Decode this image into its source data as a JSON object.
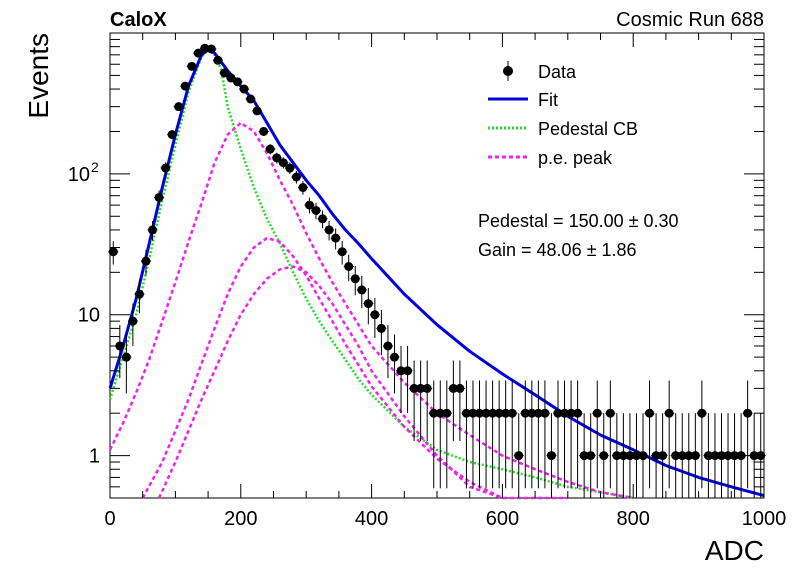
{
  "header": {
    "experiment": "CaloX",
    "run": "Cosmic Run 688"
  },
  "legend": {
    "data": "Data",
    "fit": "Fit",
    "pedestal": "Pedestal CB",
    "pe_peak": "p.e. peak"
  },
  "fit_results": {
    "pedestal": "Pedestal = 150.00 ± 0.30",
    "gain": "Gain = 48.06 ± 1.86"
  },
  "colors": {
    "data": "#000000",
    "fit": "#0000dd",
    "pedestal": "#22dd22",
    "pe_peak": "#ee22ee"
  },
  "chart_data": {
    "type": "scatter",
    "xlabel": "ADC",
    "ylabel": "Events",
    "xlim": [
      0,
      1000
    ],
    "ylim": [
      0.5,
      1000
    ],
    "yscale": "log",
    "x_ticks": [
      0,
      200,
      400,
      600,
      800,
      1000
    ],
    "y_ticks": [
      {
        "value": 1,
        "label": "1"
      },
      {
        "value": 10,
        "label": "10"
      },
      {
        "value": 100,
        "label": "10",
        "sup": "2"
      }
    ],
    "grid": false,
    "legend_position": "top-right",
    "series": [
      {
        "name": "Data",
        "kind": "points",
        "x": [
          5,
          15,
          25,
          35,
          45,
          55,
          65,
          75,
          85,
          95,
          105,
          115,
          125,
          135,
          145,
          155,
          165,
          175,
          185,
          195,
          205,
          215,
          225,
          235,
          245,
          255,
          265,
          275,
          285,
          295,
          305,
          315,
          325,
          335,
          345,
          355,
          365,
          375,
          385,
          395,
          405,
          415,
          425,
          435,
          445,
          455,
          465,
          475,
          485,
          495,
          505,
          515,
          525,
          535,
          545,
          555,
          565,
          575,
          585,
          595,
          605,
          615,
          625,
          635,
          645,
          655,
          665,
          675,
          685,
          695,
          705,
          715,
          725,
          735,
          745,
          755,
          765,
          775,
          785,
          795,
          805,
          815,
          825,
          835,
          845,
          855,
          865,
          875,
          885,
          895,
          905,
          915,
          925,
          935,
          945,
          955,
          965,
          975,
          985,
          995
        ],
        "y": [
          28,
          6,
          5,
          9,
          14,
          24,
          40,
          68,
          110,
          190,
          300,
          420,
          580,
          720,
          780,
          770,
          640,
          520,
          480,
          450,
          400,
          340,
          280,
          200,
          150,
          130,
          120,
          110,
          95,
          80,
          60,
          55,
          48,
          40,
          35,
          28,
          22,
          18,
          15,
          12,
          10,
          8,
          6,
          5,
          4,
          4,
          3,
          3,
          3,
          2,
          2,
          2,
          3,
          3,
          2,
          2,
          2,
          2,
          2,
          2,
          2,
          2,
          1,
          2,
          2,
          2,
          2,
          1,
          2,
          2,
          2,
          2,
          1,
          1,
          2,
          1,
          2,
          1,
          1,
          1,
          1,
          1,
          2,
          1,
          1,
          2,
          1,
          1,
          1,
          1,
          2,
          1,
          1,
          1,
          1,
          1,
          1,
          2,
          1,
          1
        ]
      },
      {
        "name": "Fit",
        "kind": "line",
        "x": [
          0,
          20,
          40,
          60,
          80,
          100,
          120,
          140,
          150,
          160,
          180,
          200,
          220,
          240,
          260,
          280,
          300,
          320,
          340,
          360,
          380,
          400,
          450,
          500,
          550,
          600,
          650,
          700,
          750,
          800,
          850,
          900,
          950,
          1000
        ],
        "y": [
          3,
          6,
          13,
          32,
          80,
          190,
          420,
          700,
          760,
          720,
          540,
          420,
          330,
          230,
          160,
          120,
          90,
          70,
          52,
          40,
          32,
          25,
          14,
          8.5,
          5.5,
          3.8,
          2.7,
          1.9,
          1.4,
          1.1,
          0.85,
          0.7,
          0.6,
          0.52
        ]
      },
      {
        "name": "Pedestal CB",
        "kind": "line",
        "x": [
          0,
          20,
          40,
          60,
          80,
          100,
          120,
          140,
          150,
          160,
          170,
          180,
          200,
          220,
          240,
          260,
          280,
          300,
          320,
          340,
          360,
          380,
          400,
          450,
          500,
          550,
          600,
          650,
          700,
          750,
          800
        ],
        "y": [
          2.5,
          5,
          10,
          25,
          65,
          160,
          380,
          680,
          760,
          700,
          550,
          300,
          150,
          80,
          48,
          32,
          20,
          13,
          9,
          6.5,
          4.8,
          3.5,
          2.7,
          1.6,
          1.1,
          0.9,
          0.8,
          0.7,
          0.6,
          0.55,
          0.5
        ]
      },
      {
        "name": "p.e. peak",
        "kind": "line",
        "x": [
          0,
          20,
          40,
          60,
          80,
          100,
          120,
          140,
          160,
          180,
          200,
          220,
          240,
          260,
          280,
          300,
          320,
          340,
          360,
          380,
          400,
          450,
          500,
          550,
          600,
          650,
          700,
          750,
          800
        ],
        "y": [
          1.1,
          1.7,
          2.8,
          4.8,
          9,
          17,
          33,
          62,
          120,
          190,
          230,
          200,
          140,
          90,
          60,
          38,
          25,
          17,
          12,
          8.5,
          6,
          3.3,
          2.0,
          1.4,
          1.0,
          0.8,
          0.65,
          0.55,
          0.47
        ]
      },
      {
        "name": "p.e. peak",
        "kind": "line",
        "x": [
          50,
          80,
          100,
          120,
          140,
          160,
          180,
          200,
          220,
          240,
          260,
          280,
          300,
          320,
          340,
          360,
          380,
          400,
          450,
          500,
          550,
          600,
          650,
          700
        ],
        "y": [
          0.5,
          0.9,
          1.5,
          2.5,
          4.5,
          8,
          14,
          22,
          30,
          35,
          33,
          26,
          19,
          13,
          9,
          6.2,
          4.4,
          3.1,
          1.6,
          0.95,
          0.65,
          0.5,
          0.42,
          0.36
        ]
      },
      {
        "name": "p.e. peak",
        "kind": "line",
        "x": [
          75,
          100,
          120,
          140,
          160,
          180,
          200,
          220,
          240,
          260,
          280,
          300,
          320,
          340,
          360,
          380,
          400,
          450,
          500,
          550,
          600
        ],
        "y": [
          0.5,
          0.9,
          1.5,
          2.5,
          4,
          6.5,
          10,
          14,
          18,
          21,
          22,
          20,
          16,
          12,
          8.5,
          6,
          4,
          1.9,
          1,
          0.6,
          0.4
        ]
      }
    ]
  }
}
